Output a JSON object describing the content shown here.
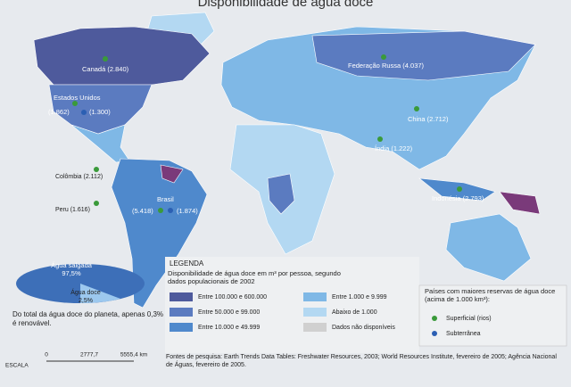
{
  "title": "Disponibilidade de água doce",
  "labels": {
    "canada": "Canadá (2.840)",
    "usa": "Estados Unidos",
    "usa_surface": "(1.862)",
    "usa_ground": "(1.300)",
    "russia": "Federação Russa (4.037)",
    "china": "China (2.712)",
    "india": "Índia (1.222)",
    "colombia": "Colômbia (2.112)",
    "brazil": "Brasil",
    "peru": "Peru (1.616)",
    "brazil_surface": "(5.418)",
    "brazil_ground": "(1.874)",
    "indonesia": "Indonésia (2.793)"
  },
  "water_pie": {
    "salt_label": "Água salgada",
    "salt_share": "97,5%",
    "fresh_label": "Água doce",
    "fresh_share": "2,5%",
    "note": "Do total da água doce do planeta, apenas 0,3% é renovável."
  },
  "scale": {
    "title": "ESCALA",
    "ticks": [
      "0",
      "2777,7",
      "5555,4 km"
    ]
  },
  "legend": {
    "title": "LEGENDA",
    "subtitle": "Disponibilidade de água doce em m³ por pessoa, segundo dados populacionais de 2002",
    "items": [
      "Entre 100.000 e 600.000",
      "Entre 50.000 e 99.000",
      "Entre 10.000 e 49.999",
      "Entre 1.000 e 9.999",
      "Abaixo de 1.000",
      "Dados não disponíveis"
    ]
  },
  "reserves": {
    "title": "Países com maiores reservas de água doce (acima de 1.000 km³):",
    "surface": "Superficial (rios)",
    "ground": "Subterrânea"
  },
  "sources": "Fontes de pesquisa: Earth Trends Data Tables: Freshwater Resources, 2003; World Resources Institute, fevereiro de 2005; Agência Nacional de Águas, fevereiro de 2005."
}
